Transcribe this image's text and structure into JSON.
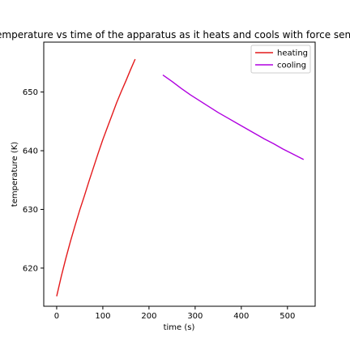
{
  "chart_data": {
    "type": "line",
    "title": "temperature vs time of the apparatus as it heats and cools with force sensor",
    "xlabel": "time (s)",
    "ylabel": "temperature (K)",
    "xlim": [
      -28,
      560
    ],
    "ylim": [
      613.5,
      658.5
    ],
    "xticks": [
      0,
      100,
      200,
      300,
      400,
      500
    ],
    "yticks": [
      620,
      630,
      640,
      650
    ],
    "grid": false,
    "legend_position": "top-right",
    "series": [
      {
        "name": "heating",
        "color": "#e41a1c",
        "x": [
          0,
          10,
          20,
          30,
          40,
          50,
          60,
          70,
          80,
          90,
          100,
          110,
          120,
          130,
          140,
          150,
          160,
          170
        ],
        "y": [
          615.2,
          618.6,
          621.7,
          624.6,
          627.3,
          629.9,
          632.3,
          634.8,
          637.2,
          639.6,
          641.9,
          644.0,
          646.1,
          648.2,
          650.1,
          651.9,
          653.8,
          655.6
        ]
      },
      {
        "name": "cooling",
        "color": "#b000e0",
        "x": [
          230,
          250,
          270,
          290,
          310,
          330,
          350,
          370,
          390,
          410,
          430,
          450,
          470,
          490,
          510,
          535
        ],
        "y": [
          652.9,
          651.8,
          650.6,
          649.5,
          648.5,
          647.5,
          646.5,
          645.6,
          644.7,
          643.8,
          642.9,
          642.0,
          641.2,
          640.3,
          639.5,
          638.5
        ]
      }
    ]
  }
}
